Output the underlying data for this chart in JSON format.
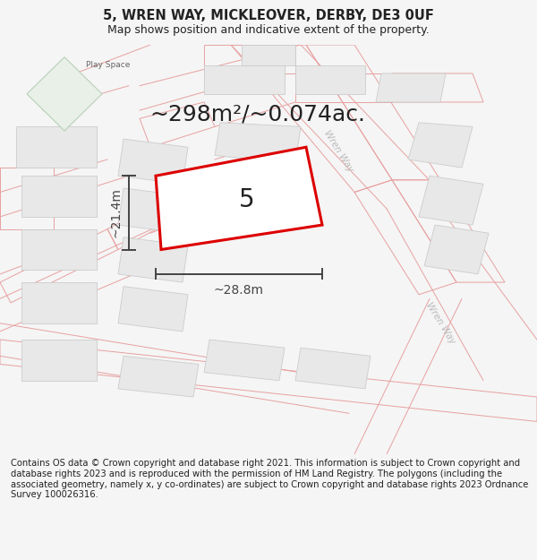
{
  "title": "5, WREN WAY, MICKLEOVER, DERBY, DE3 0UF",
  "subtitle": "Map shows position and indicative extent of the property.",
  "area_text": "~298m²/~0.074ac.",
  "width_text": "~28.8m",
  "height_text": "~21.4m",
  "property_number": "5",
  "footer_text": "Contains OS data © Crown copyright and database right 2021. This information is subject to Crown copyright and database rights 2023 and is reproduced with the permission of HM Land Registry. The polygons (including the associated geometry, namely x, y co-ordinates) are subject to Crown copyright and database rights 2023 Ordnance Survey 100026316.",
  "bg_color": "#f5f5f5",
  "map_bg": "#ffffff",
  "road_line_color": "#e8a0a0",
  "building_color": "#e8e8e8",
  "building_edge": "#cccccc",
  "play_space_color": "#e8f0e8",
  "play_space_edge": "#b8d0b8",
  "property_fill": "#ffffff",
  "property_edge": "#dd0000",
  "dim_color": "#444444",
  "text_color": "#222222",
  "road_label_color": "#bbbbbb",
  "title_fontsize": 10.5,
  "subtitle_fontsize": 9,
  "area_fontsize": 18,
  "property_num_fontsize": 20,
  "dim_fontsize": 10,
  "footer_fontsize": 7.2
}
